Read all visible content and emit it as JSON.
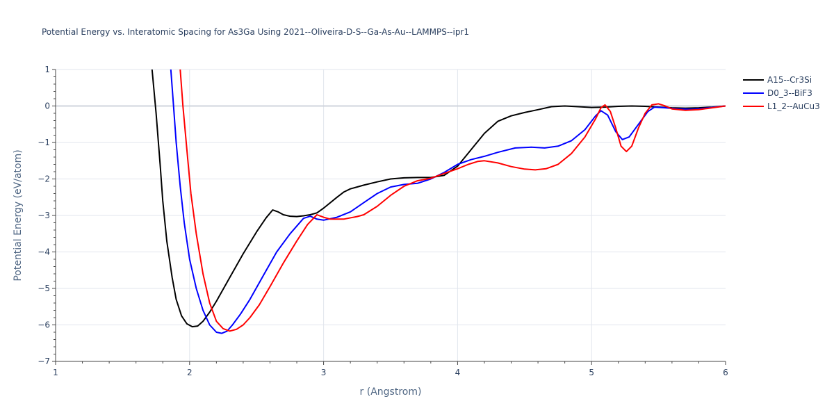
{
  "chart_data": {
    "type": "line",
    "title": "Potential Energy vs. Interatomic Spacing for As3Ga Using 2021--Oliveira-D-S--Ga-As-Au--LAMMPS--ipr1",
    "xlabel": "r (Angstrom)",
    "ylabel": "Potential Energy (eV/atom)",
    "xlim": [
      1,
      6
    ],
    "ylim": [
      -7,
      1
    ],
    "xticks": [
      "1",
      "2",
      "3",
      "4",
      "5",
      "6"
    ],
    "yticks": [
      "1",
      "0",
      "−1",
      "−2",
      "−3",
      "−4",
      "−5",
      "−6",
      "−7"
    ],
    "grid": true,
    "legend_position": "top-right",
    "series": [
      {
        "name": "A15--Cr3Si",
        "color": "#000000",
        "points": [
          [
            1.72,
            1.0
          ],
          [
            1.75,
            -0.2
          ],
          [
            1.78,
            -1.6
          ],
          [
            1.8,
            -2.6
          ],
          [
            1.83,
            -3.7
          ],
          [
            1.87,
            -4.7
          ],
          [
            1.9,
            -5.3
          ],
          [
            1.94,
            -5.75
          ],
          [
            1.98,
            -5.97
          ],
          [
            2.02,
            -6.05
          ],
          [
            2.06,
            -6.03
          ],
          [
            2.1,
            -5.9
          ],
          [
            2.15,
            -5.65
          ],
          [
            2.2,
            -5.35
          ],
          [
            2.3,
            -4.7
          ],
          [
            2.4,
            -4.05
          ],
          [
            2.5,
            -3.45
          ],
          [
            2.57,
            -3.07
          ],
          [
            2.62,
            -2.85
          ],
          [
            2.66,
            -2.9
          ],
          [
            2.7,
            -2.98
          ],
          [
            2.75,
            -3.02
          ],
          [
            2.8,
            -3.03
          ],
          [
            2.85,
            -3.01
          ],
          [
            2.9,
            -2.98
          ],
          [
            2.95,
            -2.93
          ],
          [
            3.0,
            -2.8
          ],
          [
            3.1,
            -2.5
          ],
          [
            3.15,
            -2.36
          ],
          [
            3.2,
            -2.27
          ],
          [
            3.3,
            -2.17
          ],
          [
            3.4,
            -2.08
          ],
          [
            3.5,
            -2.0
          ],
          [
            3.6,
            -1.97
          ],
          [
            3.7,
            -1.96
          ],
          [
            3.8,
            -1.96
          ],
          [
            3.9,
            -1.9
          ],
          [
            4.0,
            -1.65
          ],
          [
            4.1,
            -1.2
          ],
          [
            4.2,
            -0.75
          ],
          [
            4.3,
            -0.42
          ],
          [
            4.4,
            -0.27
          ],
          [
            4.5,
            -0.18
          ],
          [
            4.6,
            -0.1
          ],
          [
            4.7,
            -0.02
          ],
          [
            4.8,
            0.0
          ],
          [
            4.9,
            -0.02
          ],
          [
            5.0,
            -0.04
          ],
          [
            5.1,
            -0.03
          ],
          [
            5.2,
            -0.01
          ],
          [
            5.3,
            0.0
          ],
          [
            5.4,
            -0.01
          ],
          [
            5.5,
            -0.03
          ],
          [
            5.6,
            -0.05
          ],
          [
            5.7,
            -0.06
          ],
          [
            5.8,
            -0.05
          ],
          [
            5.9,
            -0.03
          ],
          [
            6.0,
            0.0
          ]
        ]
      },
      {
        "name": "D0_3--BiF3",
        "color": "#0000ff",
        "points": [
          [
            1.86,
            1.0
          ],
          [
            1.88,
            0.0
          ],
          [
            1.9,
            -1.0
          ],
          [
            1.93,
            -2.2
          ],
          [
            1.96,
            -3.2
          ],
          [
            2.0,
            -4.2
          ],
          [
            2.05,
            -5.0
          ],
          [
            2.1,
            -5.6
          ],
          [
            2.15,
            -6.0
          ],
          [
            2.2,
            -6.2
          ],
          [
            2.24,
            -6.23
          ],
          [
            2.28,
            -6.17
          ],
          [
            2.32,
            -6.0
          ],
          [
            2.38,
            -5.7
          ],
          [
            2.45,
            -5.3
          ],
          [
            2.55,
            -4.65
          ],
          [
            2.65,
            -4.0
          ],
          [
            2.75,
            -3.5
          ],
          [
            2.85,
            -3.08
          ],
          [
            2.9,
            -3.02
          ],
          [
            2.95,
            -3.1
          ],
          [
            3.0,
            -3.13
          ],
          [
            3.1,
            -3.05
          ],
          [
            3.2,
            -2.9
          ],
          [
            3.3,
            -2.65
          ],
          [
            3.4,
            -2.4
          ],
          [
            3.5,
            -2.22
          ],
          [
            3.6,
            -2.15
          ],
          [
            3.7,
            -2.12
          ],
          [
            3.8,
            -2.0
          ],
          [
            3.9,
            -1.82
          ],
          [
            4.0,
            -1.6
          ],
          [
            4.1,
            -1.47
          ],
          [
            4.2,
            -1.38
          ],
          [
            4.3,
            -1.27
          ],
          [
            4.43,
            -1.15
          ],
          [
            4.55,
            -1.13
          ],
          [
            4.65,
            -1.15
          ],
          [
            4.75,
            -1.1
          ],
          [
            4.85,
            -0.95
          ],
          [
            4.95,
            -0.65
          ],
          [
            5.03,
            -0.27
          ],
          [
            5.07,
            -0.13
          ],
          [
            5.12,
            -0.25
          ],
          [
            5.18,
            -0.7
          ],
          [
            5.23,
            -0.92
          ],
          [
            5.28,
            -0.85
          ],
          [
            5.35,
            -0.5
          ],
          [
            5.42,
            -0.15
          ],
          [
            5.47,
            -0.03
          ],
          [
            5.55,
            -0.05
          ],
          [
            5.65,
            -0.08
          ],
          [
            5.75,
            -0.09
          ],
          [
            5.85,
            -0.06
          ],
          [
            5.95,
            -0.02
          ],
          [
            6.0,
            0.0
          ]
        ]
      },
      {
        "name": "L1_2--AuCu3",
        "color": "#ff0000",
        "points": [
          [
            1.93,
            1.0
          ],
          [
            1.95,
            0.0
          ],
          [
            1.98,
            -1.2
          ],
          [
            2.01,
            -2.4
          ],
          [
            2.05,
            -3.5
          ],
          [
            2.1,
            -4.6
          ],
          [
            2.15,
            -5.4
          ],
          [
            2.2,
            -5.9
          ],
          [
            2.25,
            -6.1
          ],
          [
            2.3,
            -6.17
          ],
          [
            2.35,
            -6.12
          ],
          [
            2.4,
            -6.0
          ],
          [
            2.45,
            -5.8
          ],
          [
            2.52,
            -5.45
          ],
          [
            2.6,
            -4.95
          ],
          [
            2.7,
            -4.3
          ],
          [
            2.8,
            -3.7
          ],
          [
            2.88,
            -3.25
          ],
          [
            2.95,
            -2.98
          ],
          [
            3.0,
            -3.05
          ],
          [
            3.05,
            -3.1
          ],
          [
            3.15,
            -3.1
          ],
          [
            3.25,
            -3.03
          ],
          [
            3.3,
            -2.98
          ],
          [
            3.4,
            -2.75
          ],
          [
            3.5,
            -2.45
          ],
          [
            3.6,
            -2.2
          ],
          [
            3.7,
            -2.05
          ],
          [
            3.8,
            -1.98
          ],
          [
            3.9,
            -1.85
          ],
          [
            4.0,
            -1.72
          ],
          [
            4.08,
            -1.6
          ],
          [
            4.15,
            -1.52
          ],
          [
            4.2,
            -1.5
          ],
          [
            4.3,
            -1.56
          ],
          [
            4.4,
            -1.66
          ],
          [
            4.5,
            -1.73
          ],
          [
            4.58,
            -1.75
          ],
          [
            4.66,
            -1.72
          ],
          [
            4.75,
            -1.6
          ],
          [
            4.85,
            -1.3
          ],
          [
            4.95,
            -0.85
          ],
          [
            5.03,
            -0.35
          ],
          [
            5.07,
            -0.05
          ],
          [
            5.1,
            0.03
          ],
          [
            5.14,
            -0.15
          ],
          [
            5.18,
            -0.6
          ],
          [
            5.22,
            -1.1
          ],
          [
            5.26,
            -1.25
          ],
          [
            5.3,
            -1.1
          ],
          [
            5.35,
            -0.6
          ],
          [
            5.4,
            -0.2
          ],
          [
            5.45,
            0.03
          ],
          [
            5.5,
            0.06
          ],
          [
            5.55,
            0.0
          ],
          [
            5.6,
            -0.08
          ],
          [
            5.7,
            -0.12
          ],
          [
            5.8,
            -0.1
          ],
          [
            5.9,
            -0.05
          ],
          [
            6.0,
            0.0
          ]
        ]
      }
    ]
  }
}
